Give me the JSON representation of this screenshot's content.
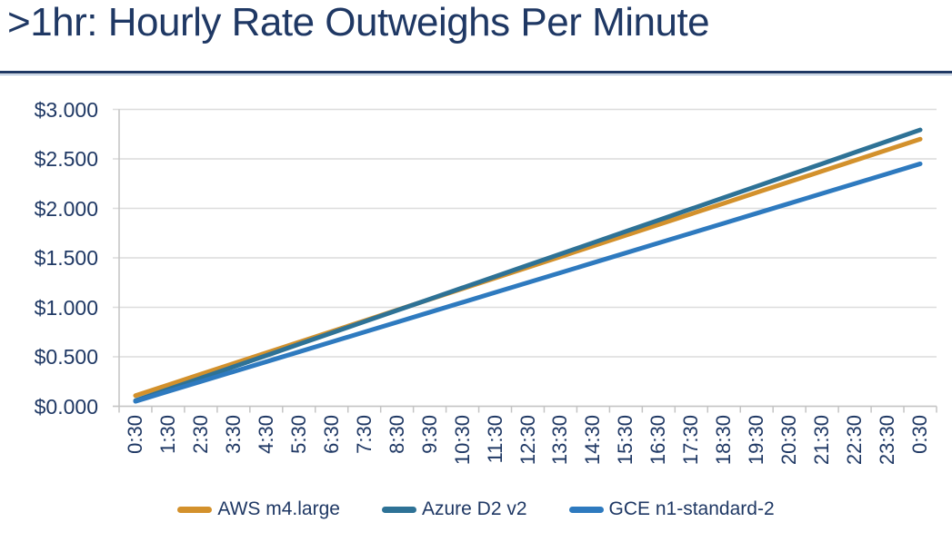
{
  "title": ">1hr: Hourly Rate Outweighs Per Minute",
  "theme": {
    "text_color": "#1F3864",
    "divider_color": "#1F3864",
    "divider_accent_color": "#9FB6D4",
    "grid_color": "#DCDCDC",
    "axis_color": "#C4C4C4",
    "background": "#FFFFFF"
  },
  "chart_data": {
    "type": "line",
    "title": "",
    "xlabel": "",
    "ylabel": "",
    "ylim": [
      0,
      3
    ],
    "grid": "horizontal",
    "legend_position": "bottom",
    "x_label_rotation_degrees": 90,
    "categories": [
      "0:30",
      "1:30",
      "2:30",
      "3:30",
      "4:30",
      "5:30",
      "6:30",
      "7:30",
      "8:30",
      "9:30",
      "10:30",
      "11:30",
      "12:30",
      "13:30",
      "14:30",
      "15:30",
      "16:30",
      "17:30",
      "18:30",
      "19:30",
      "20:30",
      "21:30",
      "22:30",
      "23:30",
      "0:30"
    ],
    "y_ticks": {
      "values": [
        0,
        0.5,
        1,
        1.5,
        2,
        2.5,
        3
      ],
      "labels": [
        "$0.000",
        "$0.500",
        "$1.000",
        "$1.500",
        "$2.000",
        "$2.500",
        "$3.000"
      ]
    },
    "series": [
      {
        "name": "AWS m4.large",
        "color": "#D3912C",
        "values": [
          0.108,
          0.216,
          0.324,
          0.432,
          0.54,
          0.648,
          0.756,
          0.864,
          0.972,
          1.08,
          1.188,
          1.296,
          1.404,
          1.512,
          1.62,
          1.728,
          1.836,
          1.944,
          2.052,
          2.16,
          2.268,
          2.376,
          2.484,
          2.592,
          2.7
        ]
      },
      {
        "name": "Azure D2 v2",
        "color": "#2E7296",
        "values": [
          0.057,
          0.171,
          0.285,
          0.399,
          0.513,
          0.627,
          0.741,
          0.855,
          0.969,
          1.083,
          1.197,
          1.311,
          1.425,
          1.539,
          1.653,
          1.767,
          1.881,
          1.995,
          2.109,
          2.223,
          2.337,
          2.451,
          2.565,
          2.679,
          2.793
        ]
      },
      {
        "name": "GCE n1-standard-2",
        "color": "#2E7ABF",
        "values": [
          0.05,
          0.15,
          0.25,
          0.35,
          0.45,
          0.55,
          0.65,
          0.75,
          0.85,
          0.95,
          1.05,
          1.15,
          1.25,
          1.35,
          1.45,
          1.55,
          1.65,
          1.75,
          1.85,
          1.95,
          2.05,
          2.15,
          2.25,
          2.35,
          2.45
        ]
      }
    ]
  }
}
